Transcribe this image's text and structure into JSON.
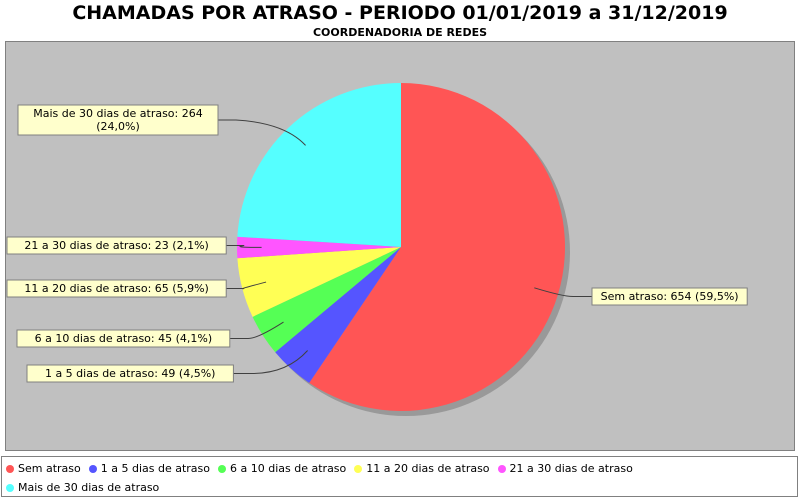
{
  "title": "CHAMADAS POR ATRASO - PERIODO 01/01/2019 a 31/12/2019",
  "subtitle": "COORDENADORIA DE REDES",
  "colors": {
    "plot_bg": "#c0c0c0",
    "label_bg": "#ffffcc",
    "label_border": "#808080"
  },
  "chart_data": {
    "type": "pie",
    "slices": [
      {
        "name": "Sem atraso",
        "value": 654,
        "label": "Sem atraso: 654 (59,5%)",
        "label_lines": [
          "Sem atraso: 654 (59,5%)"
        ],
        "color": "#ff5555"
      },
      {
        "name": "1 a 5 dias de atraso",
        "value": 49,
        "label": "1 a 5 dias de atraso: 49 (4,5%)",
        "label_lines": [
          "1 a 5 dias de atraso: 49 (4,5%)"
        ],
        "color": "#5555ff"
      },
      {
        "name": "6 a 10 dias de atraso",
        "value": 45,
        "label": "6 a 10 dias de atraso: 45 (4,1%)",
        "label_lines": [
          "6 a 10 dias de atraso: 45 (4,1%)"
        ],
        "color": "#55ff55"
      },
      {
        "name": "11 a 20 dias de atraso",
        "value": 65,
        "label": "11 a 20 dias de atraso: 65 (5,9%)",
        "label_lines": [
          "11 a 20 dias de atraso: 65 (5,9%)"
        ],
        "color": "#ffff55"
      },
      {
        "name": "21 a 30 dias de atraso",
        "value": 23,
        "label": "21 a 30 dias de atraso: 23 (2,1%)",
        "label_lines": [
          "21 a 30 dias de atraso: 23 (2,1%)"
        ],
        "color": "#ff55ff"
      },
      {
        "name": "Mais de 30 dias de atraso",
        "value": 264,
        "label": "Mais de 30 dias de atraso: 264 (24,0%)",
        "label_lines": [
          "Mais de 30 dias de atraso: 264",
          "(24,0%)"
        ],
        "color": "#55ffff"
      }
    ],
    "legend_position": "bottom"
  }
}
